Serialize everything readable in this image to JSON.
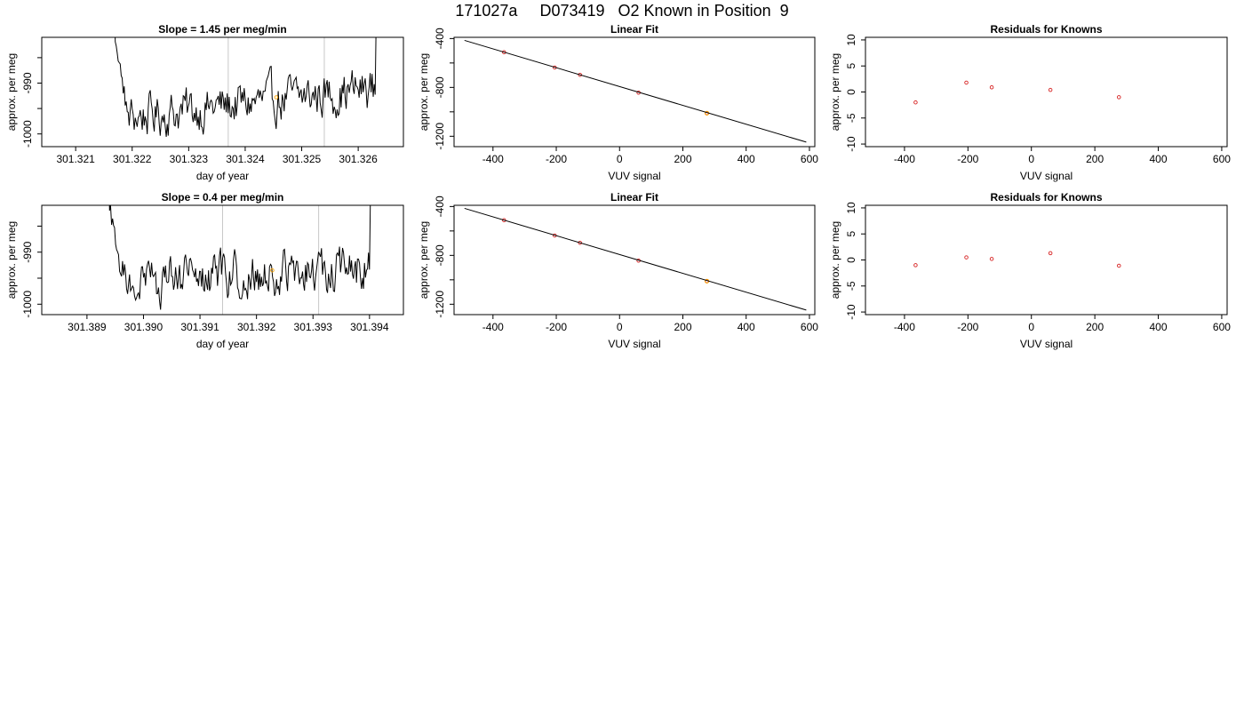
{
  "header": {
    "title": "171027a     D073419   O2 Known in Position  9"
  },
  "chart_data": [
    {
      "type": "line",
      "title": "Slope =  1.45  per meg/min",
      "xlabel": "day of year",
      "ylabel": "approx. per meg",
      "xlim": [
        301.3204,
        301.3268
      ],
      "ylim": [
        -1002.5,
        -981
      ],
      "xticks": [
        301.321,
        301.322,
        301.323,
        301.324,
        301.325,
        301.326
      ],
      "xtick_labels": [
        "301.321",
        "301.322",
        "301.323",
        "301.324",
        "301.325",
        "301.326"
      ],
      "yticks": [
        -1000,
        -990
      ],
      "ytick_labels": [
        "-1000",
        "-990"
      ],
      "extra_yticks": [
        -985,
        -995
      ],
      "vlines": [
        301.3237,
        301.3254
      ],
      "trace_range": [
        301.3217,
        301.3263
      ],
      "trace_points": 260,
      "trace_level_start": -997,
      "trace_level_end": -991,
      "marker": {
        "x": 301.32455,
        "y": -992.8
      },
      "grid": false,
      "colors": {
        "line": "#000000",
        "vline": "#c8c8c8",
        "marker": "#ffa500"
      }
    },
    {
      "type": "scatter",
      "title": "Linear Fit",
      "xlabel": "VUV signal",
      "ylabel": "approx. per meg",
      "xlim": [
        -523,
        617
      ],
      "ylim": [
        -1285,
        -390
      ],
      "xticks": [
        -400,
        -200,
        0,
        200,
        400,
        600
      ],
      "xtick_labels": [
        "-400",
        "-200",
        "0",
        "200",
        "400",
        "600"
      ],
      "yticks": [
        -1200,
        -800,
        -400
      ],
      "ytick_labels": [
        "-1200",
        "-800",
        "-400"
      ],
      "extra_yticks": [
        -1000,
        -600
      ],
      "fit_line": {
        "x": [
          -490,
          590
        ],
        "y": [
          -415,
          -1248
        ]
      },
      "points": [
        {
          "x": -365,
          "y": -512
        },
        {
          "x": -205,
          "y": -637
        },
        {
          "x": -125,
          "y": -697
        },
        {
          "x": 60,
          "y": -843
        },
        {
          "x": 276,
          "y": -1011
        }
      ],
      "highlight": {
        "x": 276,
        "y": -1011
      },
      "grid": false,
      "colors": {
        "line": "#000000",
        "points": "#d62020",
        "highlight": "#ffa500"
      }
    },
    {
      "type": "scatter",
      "title": "Residuals for Knowns",
      "xlabel": "VUV signal",
      "ylabel": "approx. per meg",
      "xlim": [
        -523,
        617
      ],
      "ylim": [
        -10.5,
        10.5
      ],
      "xticks": [
        -400,
        -200,
        0,
        200,
        400,
        600
      ],
      "xtick_labels": [
        "-400",
        "-200",
        "0",
        "200",
        "400",
        "600"
      ],
      "yticks": [
        -10,
        -5,
        0,
        5,
        10
      ],
      "ytick_labels": [
        "-10",
        "-5",
        "0",
        "5",
        "10"
      ],
      "points": [
        {
          "x": -365,
          "y": -2.0
        },
        {
          "x": -205,
          "y": 1.8
        },
        {
          "x": -125,
          "y": 0.9
        },
        {
          "x": 60,
          "y": 0.4
        },
        {
          "x": 276,
          "y": -1.0
        }
      ],
      "grid": false,
      "colors": {
        "points": "#d62020"
      }
    },
    {
      "type": "line",
      "title": "Slope =  0.4  per meg/min",
      "xlabel": "day of year",
      "ylabel": "approx. per meg",
      "xlim": [
        301.3882,
        301.3946
      ],
      "ylim": [
        -1002,
        -981
      ],
      "xticks": [
        301.389,
        301.39,
        301.391,
        301.392,
        301.393,
        301.394
      ],
      "xtick_labels": [
        "301.389",
        "301.390",
        "301.391",
        "301.392",
        "301.393",
        "301.394"
      ],
      "yticks": [
        -1000,
        -990
      ],
      "ytick_labels": [
        "-1000",
        "-990"
      ],
      "extra_yticks": [
        -985,
        -995
      ],
      "vlines": [
        301.3914,
        301.3931
      ],
      "trace_range": [
        301.3894,
        301.394
      ],
      "trace_points": 260,
      "trace_level_start": -996,
      "trace_level_end": -993,
      "marker": {
        "x": 301.39228,
        "y": -993.5
      },
      "grid": false,
      "colors": {
        "line": "#000000",
        "vline": "#c8c8c8",
        "marker": "#ffa500"
      }
    },
    {
      "type": "scatter",
      "title": "Linear Fit",
      "xlabel": "VUV signal",
      "ylabel": "approx. per meg",
      "xlim": [
        -523,
        617
      ],
      "ylim": [
        -1285,
        -390
      ],
      "xticks": [
        -400,
        -200,
        0,
        200,
        400,
        600
      ],
      "xtick_labels": [
        "-400",
        "-200",
        "0",
        "200",
        "400",
        "600"
      ],
      "yticks": [
        -1200,
        -800,
        -400
      ],
      "ytick_labels": [
        "-1200",
        "-800",
        "-400"
      ],
      "extra_yticks": [
        -1000,
        -600
      ],
      "fit_line": {
        "x": [
          -490,
          590
        ],
        "y": [
          -415,
          -1248
        ]
      },
      "points": [
        {
          "x": -365,
          "y": -512
        },
        {
          "x": -205,
          "y": -637
        },
        {
          "x": -125,
          "y": -697
        },
        {
          "x": 60,
          "y": -843
        },
        {
          "x": 276,
          "y": -1011
        }
      ],
      "highlight": {
        "x": 276,
        "y": -1011
      },
      "grid": false,
      "colors": {
        "line": "#000000",
        "points": "#d62020",
        "highlight": "#ffa500"
      }
    },
    {
      "type": "scatter",
      "title": "Residuals for Knowns",
      "xlabel": "VUV signal",
      "ylabel": "approx. per meg",
      "xlim": [
        -523,
        617
      ],
      "ylim": [
        -10.5,
        10.5
      ],
      "xticks": [
        -400,
        -200,
        0,
        200,
        400,
        600
      ],
      "xtick_labels": [
        "-400",
        "-200",
        "0",
        "200",
        "400",
        "600"
      ],
      "yticks": [
        -10,
        -5,
        0,
        5,
        10
      ],
      "ytick_labels": [
        "-10",
        "-5",
        "0",
        "5",
        "10"
      ],
      "points": [
        {
          "x": -365,
          "y": -1.0
        },
        {
          "x": -205,
          "y": 0.5
        },
        {
          "x": -125,
          "y": 0.2
        },
        {
          "x": 60,
          "y": 1.3
        },
        {
          "x": 276,
          "y": -1.1
        }
      ],
      "grid": false,
      "colors": {
        "points": "#d62020"
      }
    }
  ]
}
